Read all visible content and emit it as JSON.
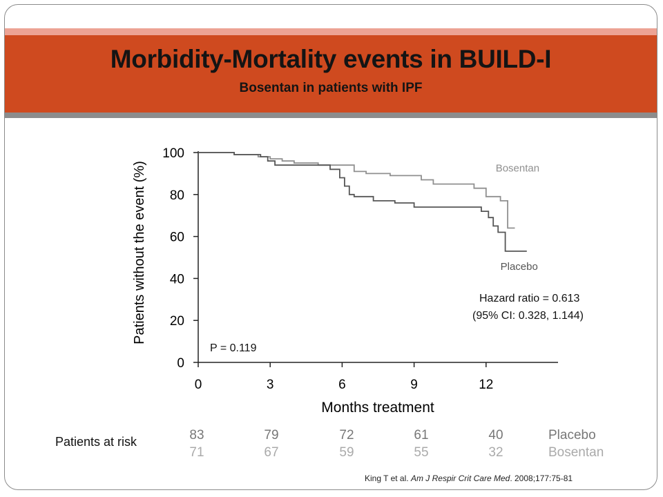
{
  "slide": {
    "title": "Morbidity-Mortality events in BUILD-I",
    "subtitle": "Bosentan in patients with IPF",
    "citation": {
      "authors": "King T et al.",
      "journal": "Am J Respir Crit Care Med",
      "details": ". 2008;177:75-81"
    }
  },
  "colors": {
    "banner": "#cf4a1f",
    "placebo": "#555555",
    "bosentan": "#8f8f8f"
  },
  "chart_data": {
    "type": "line",
    "xlabel": "Months treatment",
    "ylabel": "Patients without the event (%)",
    "xlim": [
      0,
      15
    ],
    "ylim": [
      0,
      100
    ],
    "x_ticks": [
      0,
      3,
      6,
      9,
      12
    ],
    "y_ticks": [
      0,
      20,
      40,
      60,
      80,
      100
    ],
    "step": true,
    "series": [
      {
        "name": "Bosentan",
        "color": "#8f8f8f",
        "points": [
          [
            0,
            100
          ],
          [
            1.5,
            100
          ],
          [
            1.5,
            99
          ],
          [
            2.5,
            99
          ],
          [
            2.5,
            98
          ],
          [
            3.0,
            98
          ],
          [
            3.0,
            97
          ],
          [
            3.5,
            97
          ],
          [
            3.5,
            96
          ],
          [
            4.0,
            96
          ],
          [
            4.0,
            95
          ],
          [
            5.0,
            95
          ],
          [
            5.0,
            94
          ],
          [
            6.5,
            94
          ],
          [
            6.5,
            91
          ],
          [
            7.0,
            91
          ],
          [
            7.0,
            90
          ],
          [
            8.0,
            90
          ],
          [
            8.0,
            89
          ],
          [
            9.3,
            89
          ],
          [
            9.3,
            87
          ],
          [
            9.8,
            87
          ],
          [
            9.8,
            85
          ],
          [
            11.5,
            85
          ],
          [
            11.5,
            83
          ],
          [
            12.0,
            83
          ],
          [
            12.0,
            79
          ],
          [
            12.6,
            79
          ],
          [
            12.6,
            77
          ],
          [
            12.9,
            77
          ],
          [
            12.9,
            64
          ],
          [
            13.2,
            64
          ]
        ]
      },
      {
        "name": "Placebo",
        "color": "#555555",
        "points": [
          [
            0,
            100
          ],
          [
            1.5,
            100
          ],
          [
            1.5,
            99
          ],
          [
            2.6,
            99
          ],
          [
            2.6,
            98
          ],
          [
            2.9,
            98
          ],
          [
            2.9,
            96
          ],
          [
            3.2,
            96
          ],
          [
            3.2,
            94
          ],
          [
            5.5,
            94
          ],
          [
            5.5,
            92
          ],
          [
            5.9,
            92
          ],
          [
            5.9,
            88
          ],
          [
            6.1,
            88
          ],
          [
            6.1,
            84
          ],
          [
            6.3,
            84
          ],
          [
            6.3,
            80
          ],
          [
            6.5,
            80
          ],
          [
            6.5,
            79
          ],
          [
            7.3,
            79
          ],
          [
            7.3,
            77
          ],
          [
            8.2,
            77
          ],
          [
            8.2,
            76
          ],
          [
            9.0,
            76
          ],
          [
            9.0,
            74
          ],
          [
            11.8,
            74
          ],
          [
            11.8,
            72
          ],
          [
            12.1,
            72
          ],
          [
            12.1,
            69
          ],
          [
            12.3,
            69
          ],
          [
            12.3,
            65
          ],
          [
            12.5,
            65
          ],
          [
            12.5,
            62
          ],
          [
            12.8,
            62
          ],
          [
            12.8,
            53
          ],
          [
            13.7,
            53
          ]
        ]
      }
    ],
    "series_labels": [
      {
        "name": "Bosentan",
        "x": 12.4,
        "y": 91
      },
      {
        "name": "Placebo",
        "x": 12.6,
        "y": 44
      }
    ],
    "annotations": {
      "hazard_ratio": "Hazard ratio = 0.613",
      "ci": "(95% CI: 0.328, 1.144)",
      "p_value": "P = 0.119"
    },
    "at_risk": {
      "label": "Patients at risk",
      "rows": [
        {
          "name": "Placebo",
          "values": [
            "83",
            "79",
            "72",
            "61",
            "40"
          ]
        },
        {
          "name": "Bosentan",
          "values": [
            "71",
            "67",
            "59",
            "55",
            "32"
          ]
        }
      ]
    }
  }
}
